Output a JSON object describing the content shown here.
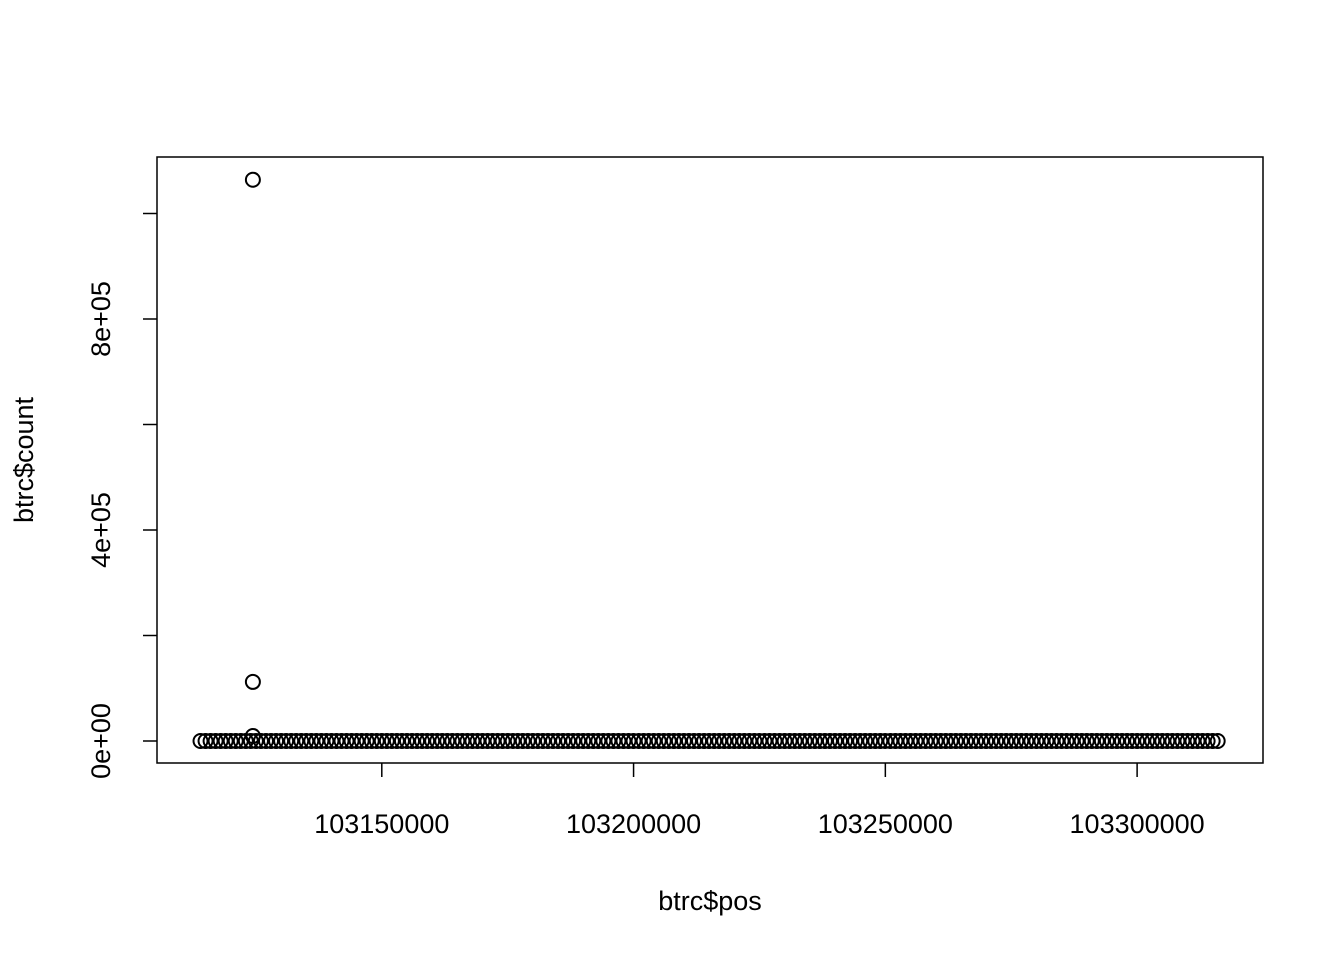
{
  "chart_data": {
    "type": "scatter",
    "x_label": "btrc$pos",
    "y_label": "btrc$count",
    "xlim": [
      103105357,
      103325000
    ],
    "ylim": [
      -41706,
      1107109
    ],
    "xticks": [
      103150000,
      103200000,
      103250000,
      103300000
    ],
    "yticks": [
      {
        "value": 0,
        "label": "0e+00"
      },
      {
        "value": 200000
      },
      {
        "value": 400000,
        "label": "4e+05"
      },
      {
        "value": 600000
      },
      {
        "value": 800000,
        "label": "8e+05"
      },
      {
        "value": 1000000
      }
    ],
    "color": "#000000",
    "x": [
      103124400,
      103124400,
      103124400,
      103114000,
      103115000,
      103116000,
      103117000,
      103118000,
      103119000,
      103120000,
      103121000,
      103122000,
      103123000,
      103124000,
      103125000,
      103126000,
      103127000,
      103128000,
      103129000,
      103130000,
      103131000,
      103132000,
      103133000,
      103134000,
      103135000,
      103136000,
      103137000,
      103138000,
      103139000,
      103140000,
      103141000,
      103142000,
      103143000,
      103144000,
      103145000,
      103146000,
      103147000,
      103148000,
      103149000,
      103150000,
      103151000,
      103152000,
      103153000,
      103154000,
      103155000,
      103156000,
      103157000,
      103158000,
      103159000,
      103160000,
      103161000,
      103162000,
      103163000,
      103164000,
      103165000,
      103166000,
      103167000,
      103168000,
      103169000,
      103170000,
      103171000,
      103172000,
      103173000,
      103174000,
      103175000,
      103176000,
      103177000,
      103178000,
      103179000,
      103180000,
      103181000,
      103182000,
      103183000,
      103184000,
      103185000,
      103186000,
      103187000,
      103188000,
      103189000,
      103190000,
      103191000,
      103192000,
      103193000,
      103194000,
      103195000,
      103196000,
      103197000,
      103198000,
      103199000,
      103200000,
      103201000,
      103202000,
      103203000,
      103204000,
      103205000,
      103206000,
      103207000,
      103208000,
      103209000,
      103210000,
      103211000,
      103212000,
      103213000,
      103214000,
      103215000,
      103216000,
      103217000,
      103218000,
      103219000,
      103220000,
      103221000,
      103222000,
      103223000,
      103224000,
      103225000,
      103226000,
      103227000,
      103228000,
      103229000,
      103230000,
      103231000,
      103232000,
      103233000,
      103234000,
      103235000,
      103236000,
      103237000,
      103238000,
      103239000,
      103240000,
      103241000,
      103242000,
      103243000,
      103244000,
      103245000,
      103246000,
      103247000,
      103248000,
      103249000,
      103250000,
      103251000,
      103252000,
      103253000,
      103254000,
      103255000,
      103256000,
      103257000,
      103258000,
      103259000,
      103260000,
      103261000,
      103262000,
      103263000,
      103264000,
      103265000,
      103266000,
      103267000,
      103268000,
      103269000,
      103270000,
      103271000,
      103272000,
      103273000,
      103274000,
      103275000,
      103276000,
      103277000,
      103278000,
      103279000,
      103280000,
      103281000,
      103282000,
      103283000,
      103284000,
      103285000,
      103286000,
      103287000,
      103288000,
      103289000,
      103290000,
      103291000,
      103292000,
      103293000,
      103294000,
      103295000,
      103296000,
      103297000,
      103298000,
      103299000,
      103300000,
      103301000,
      103302000,
      103303000,
      103304000,
      103305000,
      103306000,
      103307000,
      103308000,
      103309000,
      103310000,
      103311000,
      103312000,
      103313000,
      103314000,
      103315000,
      103316000
    ],
    "values": [
      1064000,
      112000,
      9500,
      0,
      0,
      0,
      0,
      0,
      0,
      0,
      0,
      0,
      0,
      0,
      0,
      0,
      0,
      0,
      0,
      0,
      0,
      0,
      0,
      0,
      0,
      0,
      0,
      0,
      0,
      0,
      0,
      0,
      0,
      0,
      0,
      0,
      0,
      0,
      0,
      0,
      0,
      0,
      0,
      0,
      0,
      0,
      0,
      0,
      0,
      0,
      0,
      0,
      0,
      0,
      0,
      0,
      0,
      0,
      0,
      0,
      0,
      0,
      0,
      0,
      0,
      0,
      0,
      0,
      0,
      0,
      0,
      0,
      0,
      0,
      0,
      0,
      0,
      0,
      0,
      0,
      0,
      0,
      0,
      0,
      0,
      0,
      0,
      0,
      0,
      0,
      0,
      0,
      0,
      0,
      0,
      0,
      0,
      0,
      0,
      0,
      0,
      0,
      0,
      0,
      0,
      0,
      0,
      0,
      0,
      0,
      0,
      0,
      0,
      0,
      0,
      0,
      0,
      0,
      0,
      0,
      0,
      0,
      0,
      0,
      0,
      0,
      0,
      0,
      0,
      0,
      0,
      0,
      0,
      0,
      0,
      0,
      0,
      0,
      0,
      0,
      0,
      0,
      0,
      0,
      0,
      0,
      0,
      0,
      0,
      0,
      0,
      0,
      0,
      0,
      0,
      0,
      0,
      0,
      0,
      0,
      0,
      0,
      0,
      0,
      0,
      0,
      0,
      0,
      0,
      0,
      0,
      0,
      0,
      0,
      0,
      0,
      0,
      0,
      0,
      0,
      0,
      0,
      0,
      0,
      0,
      0,
      0,
      0,
      0,
      0,
      0,
      0,
      0,
      0,
      0,
      0,
      0,
      0,
      0,
      0,
      0,
      0,
      0,
      0,
      0,
      0
    ]
  }
}
